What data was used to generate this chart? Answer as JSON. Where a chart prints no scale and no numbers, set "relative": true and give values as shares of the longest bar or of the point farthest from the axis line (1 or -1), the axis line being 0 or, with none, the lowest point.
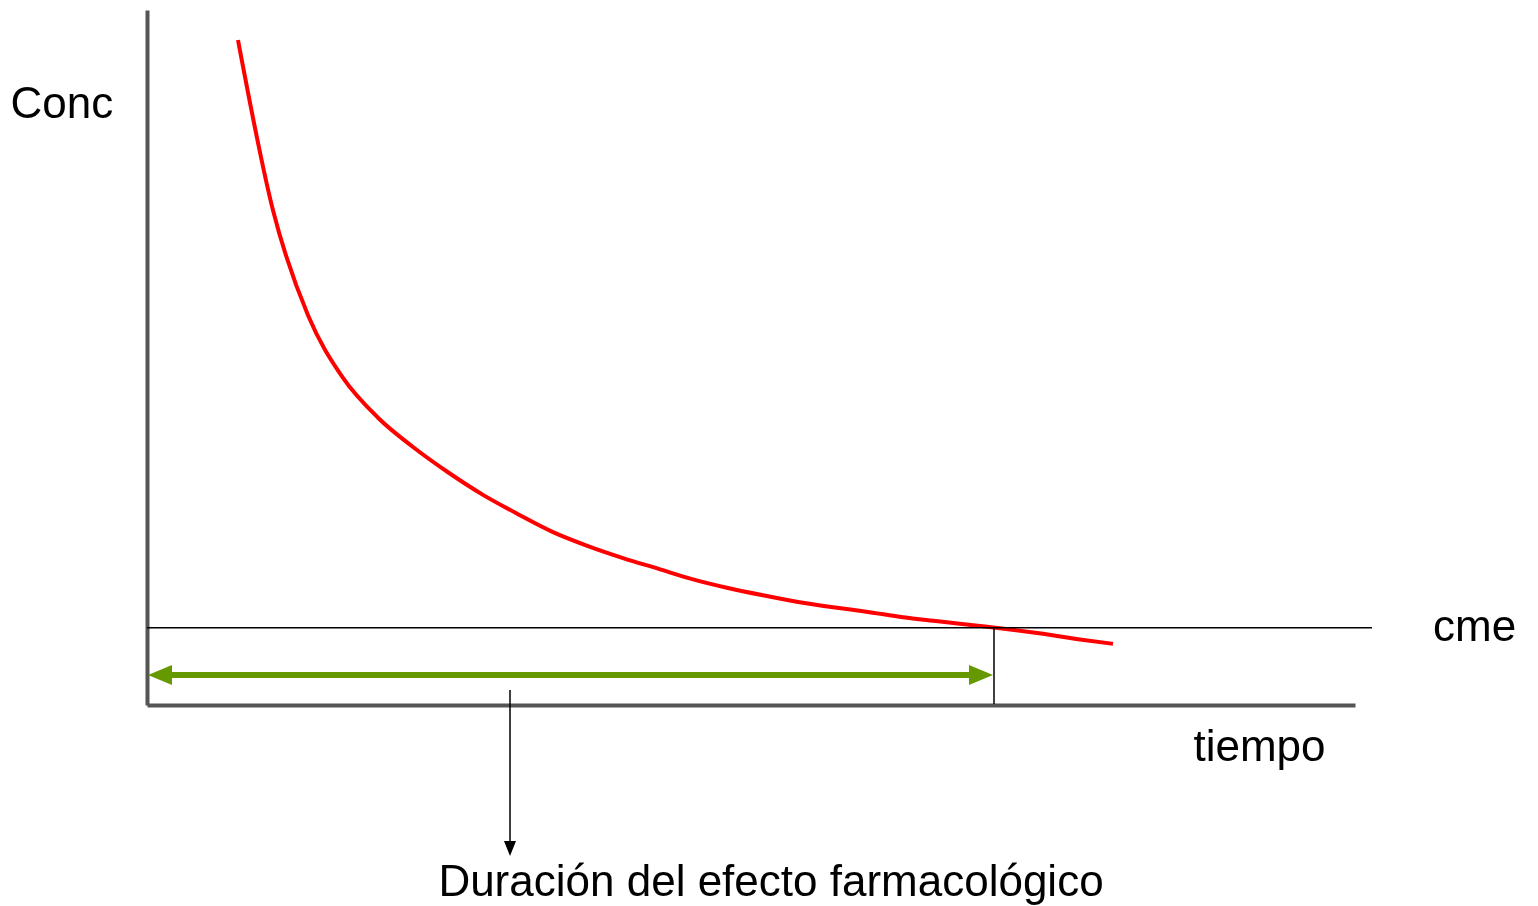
{
  "chart_data": {
    "type": "line",
    "relative": true,
    "xlabel": "tiempo",
    "ylabel": "Conc",
    "categories": [
      null,
      null,
      null,
      null,
      null,
      null,
      null,
      null,
      null,
      null,
      null,
      null,
      null,
      null,
      null,
      null,
      null,
      null,
      null,
      null,
      null,
      null,
      null,
      null,
      null,
      null
    ],
    "series": [
      {
        "color": "#ff0000",
        "values": [
          1,
          0.744,
          0.586,
          0.492,
          0.432,
          0.388,
          0.35,
          0.316,
          0.287,
          0.26,
          0.239,
          0.221,
          0.205,
          0.189,
          0.176,
          0.165,
          0.155,
          0.147,
          0.14,
          0.132,
          0.126,
          0.12,
          0.114,
          0.107,
          0.099,
          0.092
        ]
      }
    ],
    "ref_lines": [
      {
        "axis": "y",
        "value": 0.116,
        "label": "cme",
        "color": "#000000"
      }
    ],
    "annotations": [
      "Duración del efecto farmacológico"
    ]
  }
}
